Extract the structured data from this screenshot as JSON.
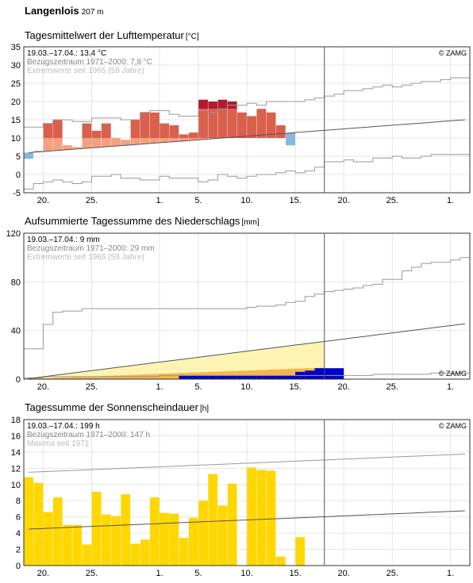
{
  "station": {
    "name": "Langenlois",
    "altitude": "207 m"
  },
  "x_ticks": [
    {
      "label": "20.",
      "day": 2
    },
    {
      "label": "25.",
      "day": 7
    },
    {
      "label": "1.",
      "day": 14
    },
    {
      "label": "5.",
      "day": 18
    },
    {
      "label": "10.",
      "day": 23
    },
    {
      "label": "15.",
      "day": 28
    },
    {
      "label": "20.",
      "day": 33
    },
    {
      "label": "25.",
      "day": 38
    },
    {
      "label": "1.",
      "day": 44
    }
  ],
  "x_range_days": [
    0,
    46
  ],
  "current_day": 31,
  "copyright": "© ZAMG",
  "charts": [
    {
      "type": "bar",
      "title": "Tagesmittelwert der Lufttemperatur",
      "unit": "[°C]",
      "legend": [
        "19.03.–17.04.: 13,4 °C",
        "Bezugszeitraum 1971–2000: 7,8 °C",
        "Extremwerte seit 1965 (59 Jahre)"
      ],
      "y_range": [
        -5,
        35
      ],
      "y_ticks": [
        -5,
        0,
        5,
        10,
        15,
        20,
        25,
        30,
        35
      ],
      "colors": {
        "above_mild": "#f5a07f",
        "above_warm": "#d9604d",
        "above_hot": "#b5192e",
        "below": "#88b8dc",
        "lines": "#999999",
        "mean": "#555555"
      },
      "values": [
        4.3,
        6.5,
        14.0,
        15.0,
        8.0,
        7.5,
        14.0,
        12.0,
        14.0,
        10.0,
        9.5,
        15.0,
        17.0,
        17.0,
        14.0,
        13.5,
        11.0,
        11.5,
        20.5,
        20.0,
        20.5,
        20.0,
        17.0,
        16.0,
        18.0,
        17.0,
        13.5,
        8.0
      ],
      "normal": [
        6.0,
        6.2,
        6.4,
        6.6,
        6.8,
        7.0,
        7.2,
        7.4,
        7.6,
        7.8,
        8.0,
        8.2,
        8.4,
        8.6,
        8.8,
        9.0,
        9.2,
        9.4,
        9.6,
        9.8,
        10.0,
        10.2,
        10.4,
        10.6,
        10.8,
        11.0,
        11.2,
        11.4,
        11.6,
        11.8,
        12.0,
        12.2,
        12.4,
        12.6,
        12.8,
        13.0,
        13.2,
        13.4,
        13.6,
        13.8,
        14.0,
        14.2,
        14.4,
        14.6,
        14.8,
        15.0
      ],
      "extreme_max": [
        13.0,
        13.0,
        14.0,
        15.0,
        15.0,
        14.5,
        14.5,
        15.5,
        15.5,
        15.5,
        15.0,
        15.0,
        17.0,
        17.5,
        17.5,
        16.5,
        16.0,
        16.0,
        17.5,
        17.0,
        18.0,
        19.0,
        19.0,
        19.5,
        19.0,
        20.0,
        20.0,
        20.0,
        20.0,
        20.5,
        21.0,
        21.5,
        22.0,
        23.0,
        23.0,
        23.5,
        24.0,
        24.5,
        24.0,
        24.5,
        25.0,
        25.5,
        25.5,
        26.0,
        26.5,
        26.5
      ],
      "extreme_min": [
        -4.0,
        -2.5,
        -2.0,
        -1.5,
        -2.0,
        -2.5,
        -2.0,
        -0.5,
        -0.5,
        0.0,
        -1.0,
        -1.0,
        -1.5,
        -1.5,
        -0.5,
        -1.0,
        -1.0,
        -1.0,
        -2.0,
        -1.5,
        0.0,
        -0.5,
        -1.0,
        -0.5,
        0.0,
        0.0,
        0.5,
        1.0,
        0.5,
        1.0,
        2.0,
        3.5,
        3.5,
        4.0,
        3.5,
        3.5,
        4.5,
        4.5,
        5.0,
        4.5,
        4.5,
        5.0,
        5.5,
        5.5,
        5.5,
        5.5
      ]
    },
    {
      "type": "area",
      "title": "Aufsummierte Tagessumme des Niederschlags",
      "unit": "[mm]",
      "legend": [
        "19.03.–17.04.: 9 mm",
        "Bezugszeitraum 1971–2000: 29 mm",
        "Extremwerte seit 1965 (59 Jahre)"
      ],
      "y_range": [
        0,
        120
      ],
      "y_ticks": [
        0,
        40,
        80,
        120
      ],
      "colors": {
        "normal_fill": "#fdf3b3",
        "mid_fill": "#f7b54a",
        "actual": "#0000cc",
        "lines": "#999999",
        "mean": "#555555"
      },
      "actual_cum": [
        0,
        0,
        0,
        0,
        0,
        0,
        0,
        0,
        0,
        0,
        0,
        0,
        0,
        0,
        0,
        0,
        3,
        3,
        3,
        3,
        3,
        3,
        3,
        3,
        3,
        3,
        3,
        3,
        6,
        7,
        9,
        9,
        9
      ],
      "normal_cum": [
        0.5,
        1.5,
        2.5,
        3.5,
        4.5,
        5.5,
        6.5,
        7.5,
        8.5,
        9.5,
        10.5,
        11.5,
        12.5,
        13.5,
        14.5,
        15.5,
        16.5,
        17.5,
        18.5,
        19.5,
        20.5,
        21.5,
        22.5,
        23.5,
        24.5,
        25.5,
        26.5,
        27.5,
        28.5,
        29.5,
        30.5,
        31.5,
        32.5,
        33.5,
        34.5,
        35.5,
        36.5,
        37.5,
        38.5,
        39.5,
        40.5,
        41.5,
        42.5,
        43.5,
        44.5,
        45.5
      ],
      "mid_cum": [
        0.5,
        1,
        1.5,
        2,
        2.5,
        3,
        3.5,
        4,
        4.5,
        5,
        5.5,
        6,
        6.5,
        7,
        7.5,
        8,
        8.5,
        9,
        9.5,
        10,
        10.5,
        11,
        11.5,
        12,
        12.5,
        13,
        13.5,
        14,
        14.5,
        15,
        15.5,
        16,
        16.5,
        17,
        17.5,
        18,
        18.5,
        19,
        19.5,
        20,
        20.5,
        21,
        21.5,
        22,
        22.5,
        23
      ],
      "extreme_max": [
        25,
        25,
        45,
        55,
        56,
        56,
        58,
        58,
        58,
        58,
        58,
        58,
        58,
        58,
        58,
        58,
        58,
        58,
        58,
        58,
        58,
        58,
        58,
        59,
        60,
        60,
        61,
        63,
        64,
        68,
        70,
        72,
        73,
        74,
        75,
        77,
        78,
        82,
        82,
        89,
        92,
        95,
        96,
        96,
        98,
        100
      ],
      "extreme_min": [
        1,
        1,
        2,
        2,
        2,
        2,
        2,
        2,
        2,
        2,
        2,
        2,
        2,
        2,
        3,
        3,
        3,
        3,
        3,
        3,
        3,
        3,
        3,
        3,
        3,
        3,
        3,
        3,
        3,
        3,
        3,
        3,
        3,
        3,
        3,
        3,
        4,
        4,
        4,
        4,
        4,
        4,
        5,
        5,
        5,
        5
      ]
    },
    {
      "type": "bar",
      "title": "Tagessumme der Sonnenscheindauer",
      "unit": "[h]",
      "legend": [
        "19.03.–17.04.: 199 h",
        "Bezugszeitraum 1971–2000: 147 h",
        "Maxima seit 1971"
      ],
      "y_range": [
        0,
        18
      ],
      "y_ticks": [
        0,
        2,
        4,
        6,
        8,
        10,
        12,
        14,
        16,
        18
      ],
      "colors": {
        "bar": "#ffd700",
        "lines": "#999999",
        "mean": "#555555"
      },
      "values": [
        10.9,
        10.2,
        6.6,
        8.4,
        5.0,
        5.0,
        2.6,
        9.1,
        6.3,
        6.1,
        8.8,
        2.7,
        3.2,
        8.4,
        6.5,
        6.4,
        3.4,
        5.9,
        8.0,
        11.3,
        7.4,
        10.1,
        0.0,
        12.1,
        11.8,
        11.7,
        1.1,
        0.0,
        3.5
      ],
      "normal": [
        4.5,
        4.55,
        4.6,
        4.65,
        4.7,
        4.75,
        4.8,
        4.85,
        4.9,
        4.95,
        5.0,
        5.05,
        5.1,
        5.15,
        5.2,
        5.25,
        5.3,
        5.35,
        5.4,
        5.45,
        5.5,
        5.55,
        5.6,
        5.65,
        5.7,
        5.75,
        5.8,
        5.85,
        5.9,
        5.95,
        6.0,
        6.05,
        6.1,
        6.15,
        6.2,
        6.25,
        6.3,
        6.35,
        6.4,
        6.45,
        6.5,
        6.55,
        6.6,
        6.65,
        6.7,
        6.75
      ],
      "maxima": [
        11.5,
        11.55,
        11.6,
        11.65,
        11.7,
        11.75,
        11.8,
        11.85,
        11.9,
        11.95,
        12.0,
        12.05,
        12.1,
        12.15,
        12.2,
        12.25,
        12.3,
        12.35,
        12.4,
        12.45,
        12.5,
        12.55,
        12.6,
        12.65,
        12.7,
        12.75,
        12.8,
        12.85,
        12.9,
        12.95,
        13.0,
        13.05,
        13.1,
        13.15,
        13.2,
        13.25,
        13.3,
        13.35,
        13.4,
        13.45,
        13.5,
        13.55,
        13.6,
        13.65,
        13.7,
        13.75
      ]
    }
  ]
}
